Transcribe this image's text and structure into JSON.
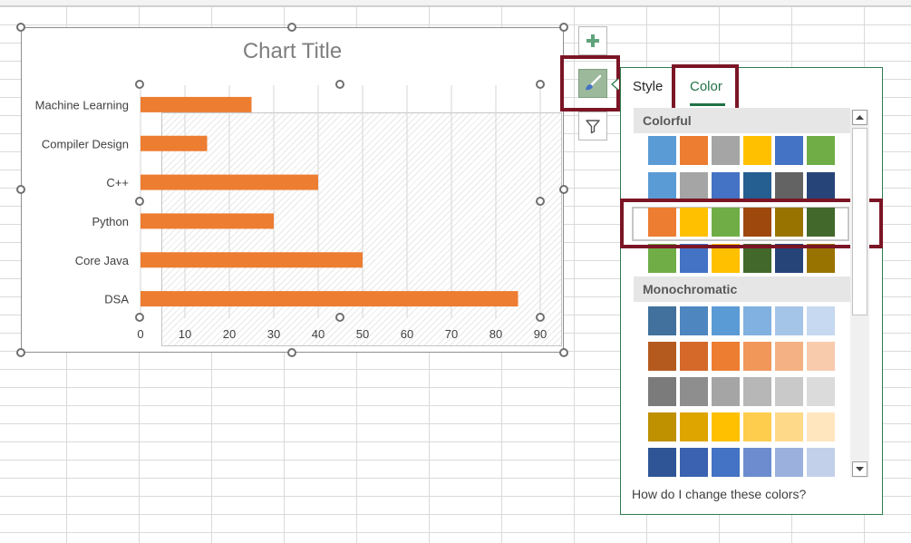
{
  "chart": {
    "title": "Chart Title"
  },
  "chart_data": {
    "type": "bar",
    "orientation": "horizontal",
    "title": "Chart Title",
    "categories": [
      "Machine Learning",
      "Compiler Design",
      "C++",
      "Python",
      "Core Java",
      "DSA"
    ],
    "values": [
      25,
      15,
      40,
      30,
      50,
      85
    ],
    "xlim": [
      0,
      90
    ],
    "xticks": [
      "0",
      "10",
      "20",
      "30",
      "40",
      "50",
      "60",
      "70",
      "80",
      "90"
    ],
    "bar_color": "#ED7D31",
    "grid": true,
    "legend": "none"
  },
  "side_buttons": {
    "add": "plus-icon",
    "style": "paintbrush-icon",
    "filter": "filter-icon"
  },
  "pane": {
    "tabs": [
      "Style",
      "Color"
    ],
    "active_tab": "Color",
    "colorful_label": "Colorful",
    "monochromatic_label": "Monochromatic",
    "colorful_rows": [
      [
        "#5B9BD5",
        "#ED7D31",
        "#A5A5A5",
        "#FFC000",
        "#4472C4",
        "#70AD47"
      ],
      [
        "#5B9BD5",
        "#A5A5A5",
        "#4472C4",
        "#255E91",
        "#636363",
        "#264478"
      ],
      [
        "#ED7D31",
        "#FFC000",
        "#70AD47",
        "#9E480E",
        "#997300",
        "#43682B"
      ],
      [
        "#70AD47",
        "#4472C4",
        "#FFC000",
        "#43682B",
        "#264478",
        "#997300"
      ]
    ],
    "mono_rows": [
      [
        "#41719C",
        "#4E86C0",
        "#5B9BD5",
        "#80B1E0",
        "#A5C5E8",
        "#C6D9F0"
      ],
      [
        "#B55A1F",
        "#D4692A",
        "#ED7D31",
        "#F1975A",
        "#F4B183",
        "#F8CBAD"
      ],
      [
        "#7B7B7B",
        "#8E8E8E",
        "#A5A5A5",
        "#B7B7B7",
        "#C9C9C9",
        "#DBDBDB"
      ],
      [
        "#BF9000",
        "#DEA500",
        "#FFC000",
        "#FFCD4D",
        "#FFD98A",
        "#FFE6BF"
      ],
      [
        "#2F5597",
        "#3A62B0",
        "#4472C4",
        "#6C8CCF",
        "#9BB0DC",
        "#C3D0EA"
      ]
    ],
    "help_link": "How do I change these colors?"
  },
  "highlight_color": "#7B1525"
}
